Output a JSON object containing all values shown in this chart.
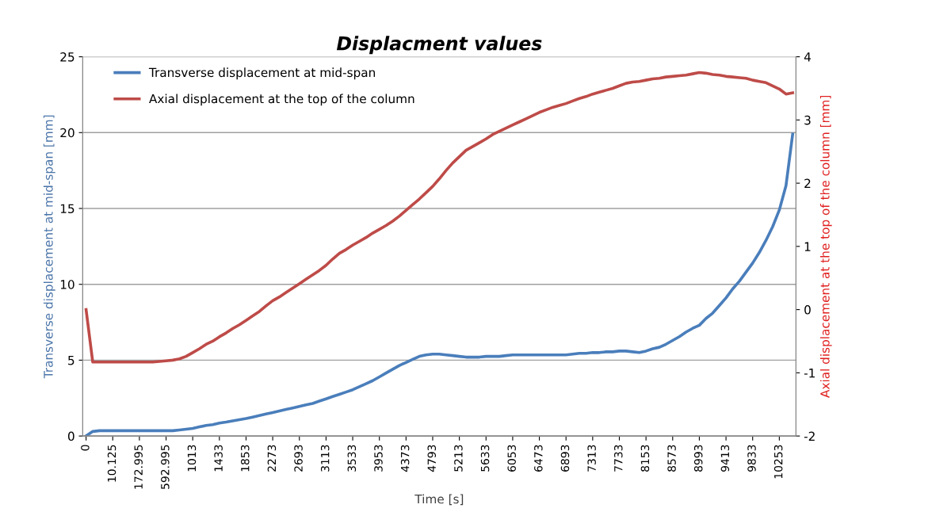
{
  "chart_data": {
    "type": "line",
    "title": "Displacment values",
    "xlabel": "Time [s]",
    "ylabel": "Transverse displacement at mid-span [mm]",
    "y2label": "Axial displacement at the top of the column [mm]",
    "categories": [
      "0",
      null,
      null,
      null,
      "10.125",
      null,
      null,
      null,
      "172.995",
      null,
      null,
      null,
      "592.995",
      null,
      null,
      null,
      "1013",
      null,
      null,
      null,
      "1433",
      null,
      null,
      null,
      "1853",
      null,
      null,
      null,
      "2273",
      null,
      null,
      null,
      "2693",
      null,
      null,
      null,
      "3113",
      null,
      null,
      null,
      "3533",
      null,
      null,
      null,
      "3953",
      null,
      null,
      null,
      "4373",
      null,
      null,
      null,
      "4793",
      null,
      null,
      null,
      "5213",
      null,
      null,
      null,
      "5633",
      null,
      null,
      null,
      "6053",
      null,
      null,
      null,
      "6473",
      null,
      null,
      null,
      "6893",
      null,
      null,
      null,
      "7313",
      null,
      null,
      null,
      "7733",
      null,
      null,
      null,
      "8153",
      null,
      null,
      null,
      "8573",
      null,
      null,
      null,
      "8993",
      null,
      null,
      null,
      "9413",
      null,
      null,
      null,
      "9833",
      null,
      null,
      null,
      "10253",
      null,
      null
    ],
    "series": [
      {
        "name": "Transverse displacement at mid-span",
        "color": "#4a7ebb",
        "values": [
          0,
          0.3,
          0.35,
          0.35,
          0.35,
          0.35,
          0.35,
          0.35,
          0.35,
          0.35,
          0.35,
          0.35,
          0.35,
          0.35,
          0.4,
          0.45,
          0.5,
          0.6,
          0.7,
          0.75,
          0.85,
          0.92,
          1.0,
          1.08,
          1.15,
          1.25,
          1.35,
          1.45,
          1.55,
          1.65,
          1.75,
          1.85,
          1.95,
          2.05,
          2.15,
          2.3,
          2.45,
          2.6,
          2.75,
          2.9,
          3.05,
          3.25,
          3.45,
          3.65,
          3.9,
          4.15,
          4.4,
          4.65,
          4.85,
          5.05,
          5.25,
          5.35,
          5.4,
          5.4,
          5.35,
          5.3,
          5.25,
          5.2,
          5.2,
          5.2,
          5.25,
          5.25,
          5.25,
          5.3,
          5.35,
          5.35,
          5.35,
          5.35,
          5.35,
          5.35,
          5.35,
          5.35,
          5.35,
          5.4,
          5.45,
          5.45,
          5.5,
          5.5,
          5.55,
          5.55,
          5.6,
          5.6,
          5.55,
          5.5,
          5.6,
          5.75,
          5.85,
          6.05,
          6.3,
          6.55,
          6.85,
          7.1,
          7.3,
          7.75,
          8.1,
          8.6,
          9.1,
          9.7,
          10.2,
          10.8,
          11.4,
          12.1,
          12.9,
          13.8,
          14.9,
          16.5,
          19.9
        ]
      },
      {
        "name": "Axial displacement at the top of the column",
        "color": "#be4b48",
        "axis": "y2",
        "values": [
          0,
          -0.83,
          -0.83,
          -0.83,
          -0.83,
          -0.83,
          -0.83,
          -0.83,
          -0.83,
          -0.83,
          -0.83,
          -0.82,
          -0.81,
          -0.8,
          -0.78,
          -0.74,
          -0.68,
          -0.62,
          -0.55,
          -0.5,
          -0.43,
          -0.37,
          -0.3,
          -0.24,
          -0.17,
          -0.1,
          -0.03,
          0.06,
          0.14,
          0.2,
          0.27,
          0.34,
          0.41,
          0.48,
          0.55,
          0.62,
          0.7,
          0.8,
          0.89,
          0.95,
          1.02,
          1.08,
          1.14,
          1.21,
          1.27,
          1.33,
          1.4,
          1.48,
          1.57,
          1.66,
          1.75,
          1.85,
          1.95,
          2.07,
          2.2,
          2.32,
          2.42,
          2.52,
          2.58,
          2.64,
          2.7,
          2.77,
          2.82,
          2.87,
          2.92,
          2.97,
          3.02,
          3.07,
          3.12,
          3.16,
          3.2,
          3.23,
          3.26,
          3.3,
          3.34,
          3.37,
          3.41,
          3.44,
          3.47,
          3.5,
          3.54,
          3.58,
          3.6,
          3.61,
          3.63,
          3.65,
          3.66,
          3.68,
          3.69,
          3.7,
          3.71,
          3.73,
          3.75,
          3.74,
          3.72,
          3.71,
          3.69,
          3.68,
          3.67,
          3.66,
          3.63,
          3.61,
          3.59,
          3.54,
          3.49,
          3.41,
          3.43
        ]
      }
    ],
    "ylim": [
      0,
      25
    ],
    "yticks": [
      0,
      5,
      10,
      15,
      20,
      25
    ],
    "y2lim": [
      -2,
      4
    ],
    "y2ticks": [
      -2,
      -1,
      0,
      1,
      2,
      3,
      4
    ],
    "grid": "y",
    "legend": "top left",
    "line_style": "solid",
    "marker": "none"
  }
}
